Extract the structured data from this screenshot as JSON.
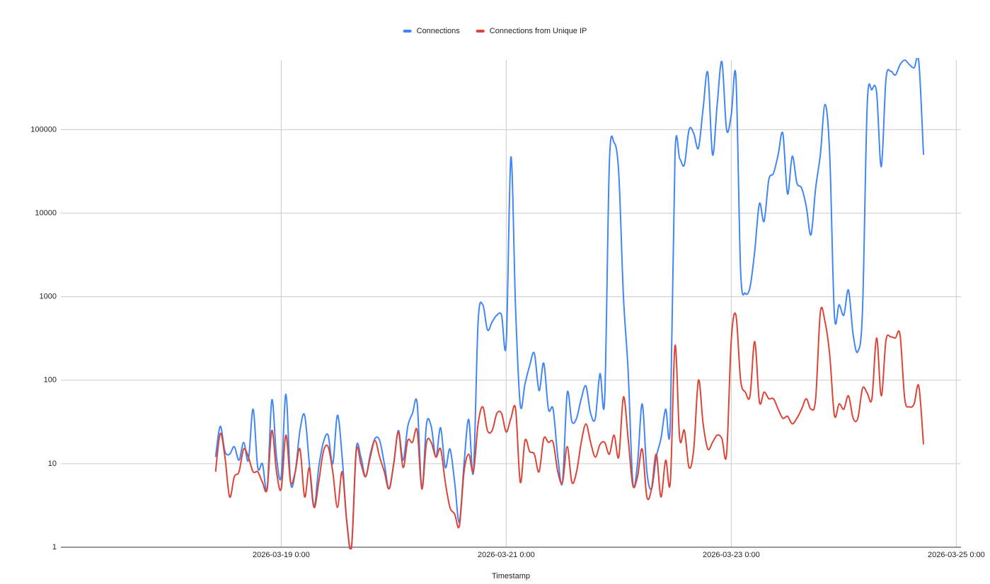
{
  "chart_data": {
    "type": "line",
    "x_label": "Timestamp",
    "x": [
      "2026-03-18 10:00",
      "2026-03-18 11:00",
      "2026-03-18 12:00",
      "2026-03-18 13:00",
      "2026-03-18 14:00",
      "2026-03-18 15:00",
      "2026-03-18 16:00",
      "2026-03-18 17:00",
      "2026-03-18 18:00",
      "2026-03-18 19:00",
      "2026-03-18 20:00",
      "2026-03-18 21:00",
      "2026-03-18 22:00",
      "2026-03-18 23:00",
      "2026-03-19 0:00",
      "2026-03-19 1:00",
      "2026-03-19 2:00",
      "2026-03-19 3:00",
      "2026-03-19 4:00",
      "2026-03-19 5:00",
      "2026-03-19 6:00",
      "2026-03-19 7:00",
      "2026-03-19 8:00",
      "2026-03-19 9:00",
      "2026-03-19 10:00",
      "2026-03-19 11:00",
      "2026-03-19 12:00",
      "2026-03-19 13:00",
      "2026-03-19 14:00",
      "2026-03-19 15:00",
      "2026-03-19 16:00",
      "2026-03-19 17:00",
      "2026-03-19 18:00",
      "2026-03-19 19:00",
      "2026-03-19 20:00",
      "2026-03-19 21:00",
      "2026-03-19 22:00",
      "2026-03-19 23:00",
      "2026-03-20 0:00",
      "2026-03-20 1:00",
      "2026-03-20 2:00",
      "2026-03-20 3:00",
      "2026-03-20 4:00",
      "2026-03-20 5:00",
      "2026-03-20 6:00",
      "2026-03-20 7:00",
      "2026-03-20 8:00",
      "2026-03-20 9:00",
      "2026-03-20 10:00",
      "2026-03-20 11:00",
      "2026-03-20 12:00",
      "2026-03-20 13:00",
      "2026-03-20 14:00",
      "2026-03-20 15:00",
      "2026-03-20 16:00",
      "2026-03-20 17:00",
      "2026-03-20 18:00",
      "2026-03-20 19:00",
      "2026-03-20 20:00",
      "2026-03-20 21:00",
      "2026-03-20 22:00",
      "2026-03-20 23:00",
      "2026-03-21 0:00",
      "2026-03-21 1:00",
      "2026-03-21 2:00",
      "2026-03-21 3:00",
      "2026-03-21 4:00",
      "2026-03-21 5:00",
      "2026-03-21 6:00",
      "2026-03-21 7:00",
      "2026-03-21 8:00",
      "2026-03-21 9:00",
      "2026-03-21 10:00",
      "2026-03-21 11:00",
      "2026-03-21 12:00",
      "2026-03-21 13:00",
      "2026-03-21 14:00",
      "2026-03-21 15:00",
      "2026-03-21 16:00",
      "2026-03-21 17:00",
      "2026-03-21 18:00",
      "2026-03-21 19:00",
      "2026-03-21 20:00",
      "2026-03-21 21:00",
      "2026-03-21 22:00",
      "2026-03-21 23:00",
      "2026-03-22 0:00",
      "2026-03-22 1:00",
      "2026-03-22 2:00",
      "2026-03-22 3:00",
      "2026-03-22 4:00",
      "2026-03-22 5:00",
      "2026-03-22 6:00",
      "2026-03-22 7:00",
      "2026-03-22 8:00",
      "2026-03-22 9:00",
      "2026-03-22 10:00",
      "2026-03-22 11:00",
      "2026-03-22 12:00",
      "2026-03-22 13:00",
      "2026-03-22 14:00",
      "2026-03-22 15:00",
      "2026-03-22 16:00",
      "2026-03-22 17:00",
      "2026-03-22 18:00",
      "2026-03-22 19:00",
      "2026-03-22 20:00",
      "2026-03-22 21:00",
      "2026-03-22 22:00",
      "2026-03-22 23:00",
      "2026-03-23 0:00",
      "2026-03-23 1:00",
      "2026-03-23 2:00",
      "2026-03-23 3:00",
      "2026-03-23 4:00",
      "2026-03-23 5:00",
      "2026-03-23 6:00",
      "2026-03-23 7:00",
      "2026-03-23 8:00",
      "2026-03-23 9:00",
      "2026-03-23 10:00",
      "2026-03-23 11:00",
      "2026-03-23 12:00",
      "2026-03-23 13:00",
      "2026-03-23 14:00",
      "2026-03-23 15:00",
      "2026-03-23 16:00",
      "2026-03-23 17:00",
      "2026-03-23 18:00",
      "2026-03-23 19:00",
      "2026-03-23 20:00",
      "2026-03-23 21:00",
      "2026-03-23 22:00",
      "2026-03-23 23:00",
      "2026-03-24 0:00",
      "2026-03-24 1:00",
      "2026-03-24 2:00",
      "2026-03-24 3:00",
      "2026-03-24 4:00",
      "2026-03-24 5:00",
      "2026-03-24 6:00",
      "2026-03-24 7:00",
      "2026-03-24 8:00",
      "2026-03-24 9:00",
      "2026-03-24 10:00",
      "2026-03-24 11:00",
      "2026-03-24 12:00",
      "2026-03-24 13:00",
      "2026-03-24 14:00",
      "2026-03-24 15:00",
      "2026-03-24 16:00",
      "2026-03-24 17:00"
    ],
    "series": [
      {
        "name": "Connections",
        "color": "#4285f4",
        "values": [
          12,
          28,
          14,
          13,
          16,
          11,
          18,
          11,
          45,
          9,
          10,
          5,
          58,
          12,
          7,
          68,
          6,
          8,
          25,
          38,
          10,
          3,
          9,
          18,
          22,
          10,
          38,
          12,
          2,
          1,
          15,
          12,
          7,
          13,
          20,
          19,
          10,
          5,
          10,
          25,
          11,
          28,
          40,
          53,
          5,
          30,
          28,
          12,
          27,
          9,
          15,
          6,
          2,
          10,
          34,
          8,
          500,
          800,
          400,
          500,
          600,
          600,
          280,
          47000,
          700,
          50,
          90,
          150,
          210,
          75,
          160,
          45,
          45,
          12,
          6,
          70,
          32,
          35,
          60,
          85,
          40,
          35,
          120,
          60,
          40000,
          70000,
          30000,
          1000,
          130,
          6,
          10,
          52,
          8,
          5,
          12,
          20,
          45,
          30,
          50000,
          45000,
          38000,
          100000,
          90000,
          60000,
          180000,
          480000,
          50000,
          200000,
          650000,
          100000,
          150000,
          420000,
          2000,
          1100,
          1300,
          3500,
          13000,
          8000,
          25000,
          30000,
          50000,
          90000,
          17000,
          48000,
          23000,
          20000,
          12000,
          5500,
          20000,
          50000,
          200000,
          50000,
          600,
          800,
          600,
          1200,
          350,
          220,
          700,
          200000,
          300000,
          280000,
          36000,
          400000,
          500000,
          450000,
          600000,
          680000,
          600000,
          550000,
          650000,
          50000
        ]
      },
      {
        "name": "Connections from Unique IP",
        "color": "#db4437",
        "values": [
          8,
          23,
          12,
          4,
          7,
          8,
          15,
          12,
          8,
          8,
          6,
          5,
          25,
          8,
          5,
          22,
          6,
          8,
          15,
          4,
          9,
          3,
          6,
          14,
          16,
          8,
          3,
          8,
          2,
          1,
          14,
          10,
          7,
          12,
          19,
          12,
          8,
          5,
          10,
          24,
          9,
          19,
          18,
          25,
          5,
          18,
          18,
          12,
          15,
          6,
          3,
          2.5,
          1.8,
          8,
          13,
          8,
          30,
          48,
          25,
          25,
          40,
          40,
          24,
          35,
          45,
          6,
          19,
          14,
          13,
          8,
          20,
          18,
          18,
          8,
          6,
          16,
          6,
          8,
          18,
          30,
          18,
          12,
          17,
          18,
          13,
          22,
          12,
          63,
          20,
          5.5,
          7,
          15,
          4,
          5,
          13,
          4,
          11,
          6,
          260,
          20,
          25,
          9,
          15,
          100,
          30,
          15,
          18,
          22,
          20,
          13,
          300,
          600,
          100,
          72,
          65,
          290,
          55,
          72,
          60,
          60,
          45,
          35,
          37,
          30,
          35,
          45,
          60,
          45,
          60,
          650,
          500,
          200,
          38,
          52,
          45,
          65,
          35,
          35,
          80,
          70,
          60,
          320,
          65,
          300,
          330,
          320,
          350,
          60,
          48,
          52,
          85,
          17
        ]
      }
    ],
    "xlim": [
      "2026-03-17 1:00",
      "2026-03-25 1:00"
    ],
    "xticks": [
      "2026-03-19 0:00",
      "2026-03-21 0:00",
      "2026-03-23 0:00",
      "2026-03-25 0:00"
    ],
    "ylim": [
      1,
      680000
    ],
    "yticks": [
      1,
      10,
      100,
      1000,
      10000,
      100000
    ],
    "yscale": "log",
    "grid": true,
    "legend": "top"
  }
}
